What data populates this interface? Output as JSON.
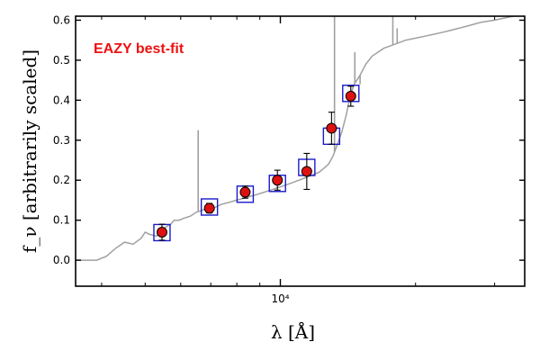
{
  "chart_data": {
    "type": "scatter",
    "title": "",
    "annotation": "EAZY best-fit",
    "xlabel": "λ [Å]",
    "ylabel": "f_ν [arbitrarily scaled]",
    "x_scale": "log",
    "xlim": [
      3500,
      35000
    ],
    "ylim": [
      -0.065,
      0.61
    ],
    "yticks": [
      0.0,
      0.1,
      0.2,
      0.3,
      0.4,
      0.5,
      0.6
    ],
    "ytick_labels": [
      "0.0",
      "0.1",
      "0.2",
      "0.3",
      "0.4",
      "0.5",
      "0.6"
    ],
    "xtick_major": [
      10000
    ],
    "xtick_major_labels": [
      "10⁴"
    ],
    "xtick_minor": [
      4000,
      5000,
      6000,
      7000,
      8000,
      9000,
      20000,
      30000
    ],
    "grid": false,
    "colors": {
      "observed": "#dd1111",
      "model_box": "#1a1acc",
      "template": "#a0a0a0",
      "annotation": "#ee1111"
    },
    "series": [
      {
        "kind": "observed",
        "points": [
          {
            "x": 5450,
            "y": 0.07,
            "yerr": 0.02
          },
          {
            "x": 6950,
            "y": 0.13,
            "yerr": 0.012
          },
          {
            "x": 8350,
            "y": 0.17,
            "yerr": 0.015
          },
          {
            "x": 9850,
            "y": 0.2,
            "yerr": 0.025
          },
          {
            "x": 11450,
            "y": 0.222,
            "yerr": 0.045
          },
          {
            "x": 13000,
            "y": 0.33,
            "yerr": 0.04
          },
          {
            "x": 14350,
            "y": 0.41,
            "yerr": 0.025
          }
        ]
      },
      {
        "kind": "model_photometry",
        "points": [
          {
            "x": 5450,
            "y": 0.069
          },
          {
            "x": 6950,
            "y": 0.133
          },
          {
            "x": 8350,
            "y": 0.165
          },
          {
            "x": 9850,
            "y": 0.192
          },
          {
            "x": 11450,
            "y": 0.232
          },
          {
            "x": 13000,
            "y": 0.31
          },
          {
            "x": 14350,
            "y": 0.417
          }
        ]
      },
      {
        "kind": "template",
        "x": [
          3500,
          3900,
          4100,
          4300,
          4500,
          4700,
          4900,
          5000,
          5100,
          5300,
          5500,
          5700,
          5800,
          5950,
          6100,
          6300,
          6500,
          6700,
          6900,
          7100,
          7400,
          7700,
          8000,
          8300,
          8600,
          8900,
          9200,
          9500,
          9800,
          10100,
          10400,
          10700,
          11000,
          11300,
          11600,
          11900,
          12200,
          12500,
          12800,
          13100,
          13400,
          13700,
          14000,
          14300,
          14600,
          15000,
          15500,
          16000,
          16500,
          17000,
          17500,
          18000,
          19000,
          20000,
          21000,
          22000,
          23000,
          24000,
          25000,
          26000,
          27000,
          28000,
          30000,
          33000,
          35000
        ],
        "y": [
          0.0,
          0.0,
          0.01,
          0.03,
          0.045,
          0.04,
          0.055,
          0.07,
          0.065,
          0.06,
          0.08,
          0.09,
          0.1,
          0.1,
          0.105,
          0.11,
          0.12,
          0.125,
          0.13,
          0.13,
          0.14,
          0.145,
          0.15,
          0.155,
          0.16,
          0.165,
          0.17,
          0.175,
          0.18,
          0.185,
          0.19,
          0.195,
          0.2,
          0.205,
          0.21,
          0.215,
          0.22,
          0.23,
          0.24,
          0.26,
          0.29,
          0.32,
          0.36,
          0.41,
          0.44,
          0.46,
          0.49,
          0.51,
          0.52,
          0.53,
          0.535,
          0.54,
          0.55,
          0.555,
          0.56,
          0.565,
          0.57,
          0.575,
          0.58,
          0.585,
          0.59,
          0.595,
          0.6,
          0.61,
          0.615
        ],
        "emission_lines": [
          {
            "x": 6562,
            "peak": 0.325
          },
          {
            "x": 13200,
            "peak": 0.62
          },
          {
            "x": 14650,
            "peak": 0.52
          },
          {
            "x": 15050,
            "peak": 0.44
          },
          {
            "x": 17800,
            "peak": 0.62
          },
          {
            "x": 18200,
            "peak": 0.58
          }
        ]
      }
    ]
  }
}
